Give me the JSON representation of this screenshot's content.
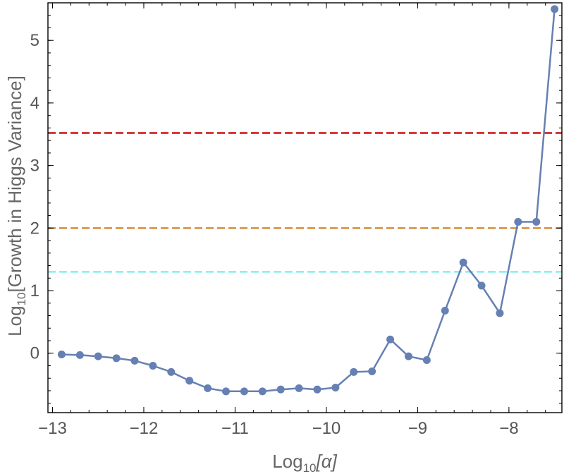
{
  "chart_data": {
    "type": "line",
    "xlabel_main": "Log",
    "xlabel_sub": "10",
    "xlabel_rest": "[α]",
    "ylabel_main": "Log",
    "ylabel_sub": "10",
    "ylabel_rest": "[Growth in Higgs Variance]",
    "xlim": [
      -13.05,
      -7.42
    ],
    "ylim": [
      -0.95,
      5.6
    ],
    "x_ticks": [
      -13,
      -12,
      -11,
      -10,
      -9,
      -8
    ],
    "x_tick_labels": [
      "−13",
      "−12",
      "−11",
      "−10",
      "−9",
      "−8"
    ],
    "x_minor_step": 0.2,
    "y_ticks": [
      0,
      1,
      2,
      3,
      4,
      5
    ],
    "y_tick_labels": [
      "0",
      "1",
      "2",
      "3",
      "4",
      "5"
    ],
    "y_minor_step": 0.2,
    "grid": false,
    "series": [
      {
        "color": "#6680b3",
        "x": [
          -12.9,
          -12.7,
          -12.5,
          -12.3,
          -12.1,
          -11.9,
          -11.7,
          -11.5,
          -11.3,
          -11.1,
          -10.9,
          -10.7,
          -10.5,
          -10.3,
          -10.1,
          -9.9,
          -9.7,
          -9.5,
          -9.3,
          -9.1,
          -8.9,
          -8.7,
          -8.5,
          -8.3,
          -8.1,
          -7.9,
          -7.7,
          -7.5
        ],
        "y": [
          -0.02,
          -0.03,
          -0.05,
          -0.08,
          -0.12,
          -0.2,
          -0.3,
          -0.44,
          -0.56,
          -0.61,
          -0.61,
          -0.61,
          -0.58,
          -0.56,
          -0.58,
          -0.55,
          -0.3,
          -0.29,
          0.22,
          -0.05,
          -0.11,
          0.68,
          1.45,
          1.08,
          0.64,
          2.1,
          2.1,
          5.5
        ]
      }
    ],
    "reference_lines": [
      {
        "y": 3.52,
        "color": "#cc1111",
        "style": "dashed"
      },
      {
        "y": 2.0,
        "color": "#d98c33",
        "style": "dashed"
      },
      {
        "y": 1.3,
        "color": "#80f0f0",
        "style": "dashed"
      }
    ]
  }
}
